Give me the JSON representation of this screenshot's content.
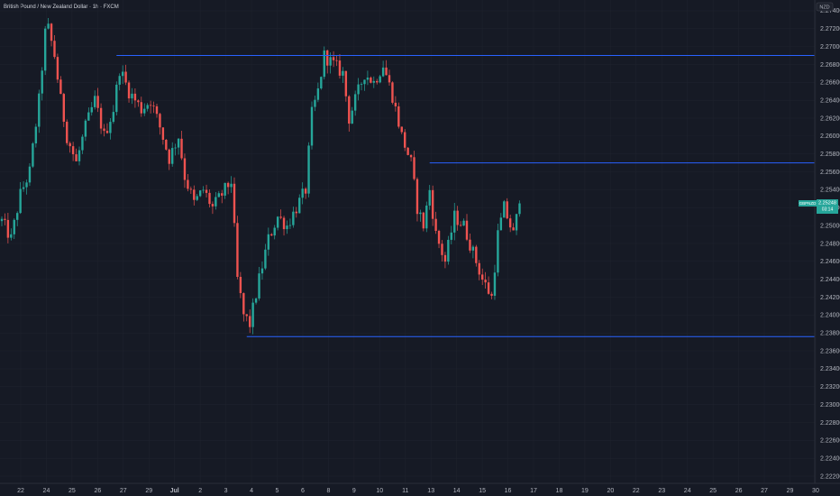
{
  "header": {
    "title": "British Pound / New Zealand Dollar · 1h · FXCM"
  },
  "currency_badge": "NZD",
  "price_tag": {
    "symbol": "GBPNZD",
    "price": "2.25248",
    "countdown": "03:14"
  },
  "colors": {
    "background": "#161a25",
    "up": "#26a69a",
    "down": "#ef5350",
    "level": "#2962ff",
    "axis_text": "#b2b5be"
  },
  "chart_data": {
    "type": "candlestick",
    "ylim": [
      2.2212,
      2.2752
    ],
    "y_ticks": [
      "2.27400",
      "2.27200",
      "2.27000",
      "2.26800",
      "2.26600",
      "2.26400",
      "2.26200",
      "2.26000",
      "2.25800",
      "2.25600",
      "2.25400",
      "2.25200",
      "2.25000",
      "2.24800",
      "2.24600",
      "2.24400",
      "2.24200",
      "2.24000",
      "2.23800",
      "2.23600",
      "2.23400",
      "2.23200",
      "2.23000",
      "2.22800",
      "2.22600",
      "2.22400",
      "2.22200"
    ],
    "x_ticks": [
      "22",
      "24",
      "25",
      "26",
      "27",
      "29",
      "Jul",
      "2",
      "3",
      "4",
      "5",
      "6",
      "8",
      "9",
      "10",
      "11",
      "13",
      "14",
      "15",
      "16",
      "17",
      "18",
      "19",
      "20",
      "22",
      "23",
      "24",
      "25",
      "26",
      "27",
      "29",
      "30"
    ],
    "last_price": 2.25248,
    "levels": [
      {
        "price": 2.269,
        "from_index": 37
      },
      {
        "price": 2.257,
        "from_index": 138
      },
      {
        "price": 2.2376,
        "from_index": 79
      }
    ],
    "price_path": [
      [
        0,
        2.2505
      ],
      [
        3,
        2.2485
      ],
      [
        6,
        2.2535
      ],
      [
        9,
        2.256
      ],
      [
        12,
        2.264
      ],
      [
        14,
        2.2715
      ],
      [
        15,
        2.272
      ],
      [
        17,
        2.269
      ],
      [
        19,
        2.264
      ],
      [
        21,
        2.26
      ],
      [
        24,
        2.257
      ],
      [
        27,
        2.261
      ],
      [
        30,
        2.264
      ],
      [
        33,
        2.26
      ],
      [
        36,
        2.263
      ],
      [
        38,
        2.2675
      ],
      [
        41,
        2.265
      ],
      [
        45,
        2.263
      ],
      [
        48,
        2.264
      ],
      [
        51,
        2.261
      ],
      [
        54,
        2.2575
      ],
      [
        57,
        2.26
      ],
      [
        59,
        2.2555
      ],
      [
        62,
        2.2525
      ],
      [
        65,
        2.254
      ],
      [
        68,
        2.252
      ],
      [
        71,
        2.2535
      ],
      [
        74,
        2.255
      ],
      [
        76,
        2.244
      ],
      [
        78,
        2.24
      ],
      [
        80,
        2.239
      ],
      [
        83,
        2.244
      ],
      [
        86,
        2.2485
      ],
      [
        89,
        2.251
      ],
      [
        92,
        2.25
      ],
      [
        95,
        2.252
      ],
      [
        98,
        2.254
      ],
      [
        100,
        2.2625
      ],
      [
        102,
        2.265
      ],
      [
        104,
        2.269
      ],
      [
        107,
        2.268
      ],
      [
        110,
        2.267
      ],
      [
        112,
        2.262
      ],
      [
        114,
        2.264
      ],
      [
        117,
        2.267
      ],
      [
        120,
        2.266
      ],
      [
        123,
        2.268
      ],
      [
        126,
        2.2645
      ],
      [
        129,
        2.26
      ],
      [
        132,
        2.257
      ],
      [
        134,
        2.252
      ],
      [
        136,
        2.25
      ],
      [
        138,
        2.254
      ],
      [
        140,
        2.249
      ],
      [
        143,
        2.246
      ],
      [
        146,
        2.251
      ],
      [
        149,
        2.25
      ],
      [
        152,
        2.247
      ],
      [
        155,
        2.244
      ],
      [
        158,
        2.242
      ],
      [
        160,
        2.249
      ],
      [
        162,
        2.252
      ],
      [
        165,
        2.249
      ],
      [
        167,
        2.2525
      ]
    ]
  }
}
